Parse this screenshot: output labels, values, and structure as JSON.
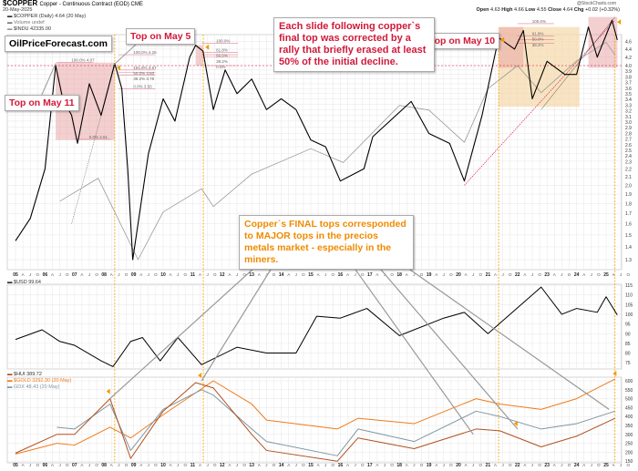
{
  "header": {
    "symbol": "$COPPER",
    "description": "Copper - Continuous Contract (EOD) CME",
    "date": "20-May-2025",
    "credit": "@StockCharts.com",
    "ohlc": {
      "open_label": "Open",
      "open": "4.63",
      "high_label": "High",
      "high": "4.66",
      "low_label": "Low",
      "low": "4.55",
      "close_label": "Close",
      "close": "4.64",
      "chg_label": "Chg",
      "chg": "+0.02 (+0.32%)"
    }
  },
  "legends": {
    "copper": "$COPPER (Daily) 4.64 (20 May)",
    "volume": "Volume undef",
    "indu": "$INDU 42335.00",
    "usd": "$USD 99.64",
    "hui": "$HUI 389.72",
    "gold": "$GOLD 3292.30 (20 May)",
    "gdx": "GDX 48.43 (20 May)"
  },
  "annotations": {
    "brand": "OilPriceForecast.com",
    "top_may_11": "Top on May 11",
    "top_may_5": "Top on May 5",
    "top_may_10": "Top on May 10",
    "slide_note": "Each slide following copper`s final top was corrected by a rally that briefly erased at least 50% of the initial decline.",
    "final_tops_note": "Copper`s FINAL tops corresponded to MAJOR tops in the precios metals market - especially in the miners."
  },
  "fib_labels": {
    "a100": "100.0% 4.07",
    "a0": "0.0% 2.61",
    "b100": "100.0% 4.26",
    "b1618": "161.8% 3.67",
    "b50": "50.0% 3.60",
    "b382": "38.2% 3.78",
    "b0": "0.0% 3.50",
    "c100": "100.0%",
    "c618": "61.8%",
    "c50": "50.0%",
    "c382": "38.2%",
    "c0": "0.0%",
    "d100": "100.0%",
    "d618": "61.8%",
    "d50": "50.0%",
    "d382": "38.2%"
  },
  "colors": {
    "copper": "#000000",
    "copper_down": "#e0003c",
    "indu": "#9a9a9a",
    "usd": "#000000",
    "hui": "#b0501e",
    "gold": "#f07a1a",
    "gdx": "#7f96a3",
    "marker": "#f59a00",
    "top_line": "#f5a000",
    "fib_zone": "#e8a0a0",
    "final_zone": "#f5d9a8",
    "grid": "#e6e6e6"
  },
  "chart_data": [
    {
      "type": "line",
      "panel": "copper",
      "yscale": "log",
      "ylim": [
        1.25,
        5.3
      ],
      "x_ticks": [
        "05",
        "06",
        "07",
        "08",
        "09",
        "10",
        "11",
        "12",
        "13",
        "14",
        "15",
        "16",
        "17",
        "18",
        "19",
        "20",
        "21",
        "22",
        "23",
        "24",
        "25"
      ],
      "y_ticks": [
        1.3,
        1.4,
        1.5,
        1.6,
        1.7,
        1.8,
        1.9,
        2.0,
        2.1,
        2.2,
        2.3,
        2.4,
        2.5,
        2.6,
        2.7,
        2.8,
        2.9,
        3.0,
        3.1,
        3.2,
        3.3,
        3.4,
        3.5,
        3.6,
        3.7,
        3.8,
        3.9,
        4.0,
        4.2,
        4.4,
        4.6,
        4.8,
        5.0
      ],
      "series": [
        {
          "name": "$COPPER",
          "x": [
            2005.0,
            2005.5,
            2006.0,
            2006.36,
            2006.6,
            2006.9,
            2007.1,
            2007.5,
            2007.9,
            2008.36,
            2008.6,
            2008.8,
            2008.97,
            2009.5,
            2010.0,
            2010.4,
            2010.9,
            2011.1,
            2011.35,
            2011.7,
            2012.1,
            2012.5,
            2013.0,
            2013.5,
            2014.0,
            2014.5,
            2015.0,
            2015.5,
            2016.0,
            2016.8,
            2017.1,
            2018.4,
            2019.0,
            2019.7,
            2020.2,
            2020.8,
            2021.36,
            2021.9,
            2022.2,
            2022.5,
            2023.0,
            2023.6,
            2024.0,
            2024.4,
            2024.7,
            2025.2,
            2025.38
          ],
          "y": [
            1.45,
            1.65,
            2.2,
            4.0,
            3.3,
            3.0,
            2.55,
            3.6,
            3.0,
            4.05,
            3.5,
            2.2,
            1.3,
            2.4,
            3.3,
            2.9,
            4.2,
            4.5,
            4.35,
            3.1,
            3.9,
            3.4,
            3.7,
            3.1,
            3.3,
            3.1,
            2.6,
            2.5,
            2.05,
            2.2,
            2.65,
            3.25,
            2.7,
            2.55,
            2.05,
            3.0,
            4.7,
            4.4,
            4.9,
            3.3,
            4.1,
            3.8,
            3.8,
            5.0,
            4.2,
            5.2,
            4.64
          ]
        },
        {
          "name": "$INDU",
          "x": [
            2006.5,
            2007.8,
            2009.15,
            2010.0,
            2011.3,
            2011.7,
            2013.0,
            2015.0,
            2016.1,
            2018.0,
            2019.0,
            2020.2,
            2021.0,
            2022.0,
            2022.8,
            2024.0,
            2025.0,
            2025.3
          ],
          "y": [
            11500,
            14000,
            7000,
            10500,
            12800,
            11000,
            14500,
            18000,
            16000,
            26000,
            25000,
            19000,
            30000,
            36500,
            29000,
            38000,
            44500,
            40000
          ]
        }
      ]
    },
    {
      "type": "line",
      "panel": "usd",
      "ylim": [
        72,
        117
      ],
      "y_ticks": [
        75,
        80,
        85,
        90,
        95,
        100,
        105,
        110,
        115
      ],
      "series": [
        {
          "name": "$USD",
          "x": [
            2005.0,
            2005.9,
            2006.5,
            2007.0,
            2007.9,
            2008.3,
            2008.9,
            2009.3,
            2009.9,
            2010.5,
            2011.3,
            2012.5,
            2013.5,
            2014.5,
            2015.2,
            2016.0,
            2016.9,
            2018.0,
            2019.5,
            2020.2,
            2021.0,
            2022.8,
            2023.5,
            2024.0,
            2024.7,
            2025.0,
            2025.38
          ],
          "y": [
            87,
            92,
            86,
            84,
            76,
            73,
            86,
            88,
            76,
            88,
            74,
            83,
            80,
            80,
            99,
            98,
            103,
            89,
            98,
            101,
            90,
            114,
            100,
            103,
            101,
            109,
            99.64
          ]
        }
      ]
    },
    {
      "type": "line",
      "panel": "metals",
      "ylim": [
        140,
        630
      ],
      "y_ticks": [
        150,
        200,
        250,
        300,
        350,
        400,
        450,
        500,
        550,
        600
      ],
      "series": [
        {
          "name": "$HUI",
          "x": [
            2005.0,
            2006.4,
            2007.0,
            2008.2,
            2008.9,
            2010.0,
            2011.1,
            2011.7,
            2013.0,
            2013.5,
            2015.9,
            2016.6,
            2018.5,
            2020.6,
            2021.4,
            2022.8,
            2024.0,
            2025.3
          ],
          "y": [
            195,
            300,
            300,
            500,
            165,
            430,
            590,
            560,
            300,
            210,
            150,
            280,
            220,
            330,
            320,
            230,
            290,
            389.72
          ]
        },
        {
          "name": "$GOLD",
          "x": [
            2005.0,
            2006.4,
            2007.0,
            2008.2,
            2008.9,
            2010.0,
            2011.7,
            2013.0,
            2013.5,
            2015.9,
            2016.6,
            2018.5,
            2020.6,
            2021.4,
            2022.8,
            2024.0,
            2025.3
          ],
          "y": [
            190,
            250,
            240,
            340,
            280,
            410,
            600,
            470,
            380,
            330,
            390,
            360,
            500,
            470,
            440,
            500,
            610
          ]
        },
        {
          "name": "GDX",
          "x": [
            2006.4,
            2007.0,
            2008.2,
            2008.9,
            2010.0,
            2011.3,
            2011.7,
            2013.0,
            2013.5,
            2015.9,
            2016.6,
            2018.5,
            2020.6,
            2021.4,
            2022.8,
            2024.0,
            2025.3
          ],
          "y": [
            340,
            330,
            470,
            210,
            440,
            550,
            520,
            330,
            260,
            180,
            330,
            260,
            430,
            400,
            330,
            360,
            430
          ]
        }
      ]
    }
  ]
}
